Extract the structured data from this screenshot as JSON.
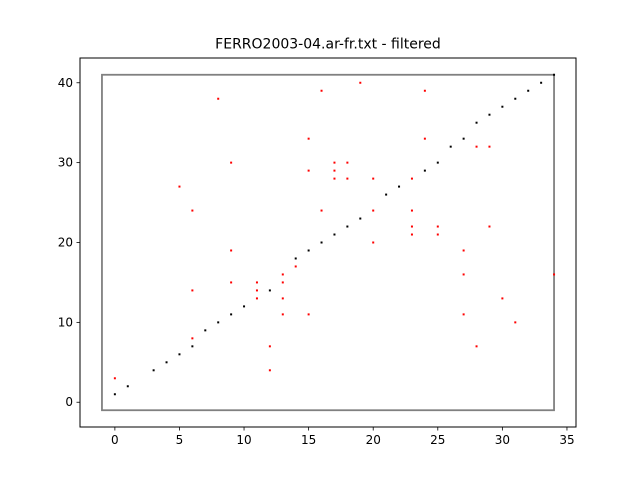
{
  "chart_data": {
    "type": "scatter",
    "title": "FERRO2003-04.ar-fr.txt - filtered",
    "xlabel": "",
    "ylabel": "",
    "xlim": [
      -2.7,
      35.7
    ],
    "ylim": [
      -3.1,
      43.1
    ],
    "xticks": [
      0,
      5,
      10,
      15,
      20,
      25,
      30,
      35
    ],
    "yticks": [
      0,
      10,
      20,
      30,
      40
    ],
    "grid": false,
    "frame_box": {
      "x": [
        -1,
        34
      ],
      "y": [
        -1,
        41
      ],
      "color": "#808080"
    },
    "series": [
      {
        "color": "#000000",
        "points": [
          [
            0,
            1
          ],
          [
            1,
            2
          ],
          [
            3,
            4
          ],
          [
            4,
            5
          ],
          [
            5,
            6
          ],
          [
            6,
            7
          ],
          [
            7,
            9
          ],
          [
            8,
            10
          ],
          [
            9,
            11
          ],
          [
            10,
            12
          ],
          [
            12,
            14
          ],
          [
            14,
            18
          ],
          [
            15,
            19
          ],
          [
            16,
            20
          ],
          [
            17,
            21
          ],
          [
            18,
            22
          ],
          [
            19,
            23
          ],
          [
            21,
            26
          ],
          [
            22,
            27
          ],
          [
            24,
            29
          ],
          [
            25,
            30
          ],
          [
            26,
            32
          ],
          [
            27,
            33
          ],
          [
            28,
            35
          ],
          [
            29,
            36
          ],
          [
            30,
            37
          ],
          [
            31,
            38
          ],
          [
            32,
            39
          ],
          [
            33,
            40
          ],
          [
            34,
            41
          ]
        ]
      },
      {
        "color": "#ff0000",
        "points": [
          [
            0,
            3
          ],
          [
            5,
            27
          ],
          [
            6,
            24
          ],
          [
            6,
            14
          ],
          [
            6,
            8
          ],
          [
            8,
            38
          ],
          [
            9,
            30
          ],
          [
            9,
            19
          ],
          [
            9,
            15
          ],
          [
            11,
            15
          ],
          [
            11,
            14
          ],
          [
            11,
            13
          ],
          [
            12,
            7
          ],
          [
            12,
            4
          ],
          [
            13,
            16
          ],
          [
            13,
            15
          ],
          [
            13,
            13
          ],
          [
            13,
            11
          ],
          [
            14,
            17
          ],
          [
            15,
            33
          ],
          [
            15,
            29
          ],
          [
            15,
            11
          ],
          [
            16,
            39
          ],
          [
            16,
            24
          ],
          [
            17,
            30
          ],
          [
            17,
            29
          ],
          [
            17,
            28
          ],
          [
            18,
            30
          ],
          [
            18,
            28
          ],
          [
            19,
            40
          ],
          [
            20,
            28
          ],
          [
            20,
            24
          ],
          [
            20,
            20
          ],
          [
            23,
            28
          ],
          [
            23,
            24
          ],
          [
            23,
            22
          ],
          [
            23,
            21
          ],
          [
            24,
            39
          ],
          [
            24,
            33
          ],
          [
            25,
            22
          ],
          [
            25,
            21
          ],
          [
            27,
            19
          ],
          [
            27,
            16
          ],
          [
            27,
            11
          ],
          [
            28,
            32
          ],
          [
            28,
            7
          ],
          [
            29,
            32
          ],
          [
            29,
            22
          ],
          [
            30,
            13
          ],
          [
            31,
            10
          ],
          [
            34,
            16
          ]
        ]
      }
    ]
  }
}
